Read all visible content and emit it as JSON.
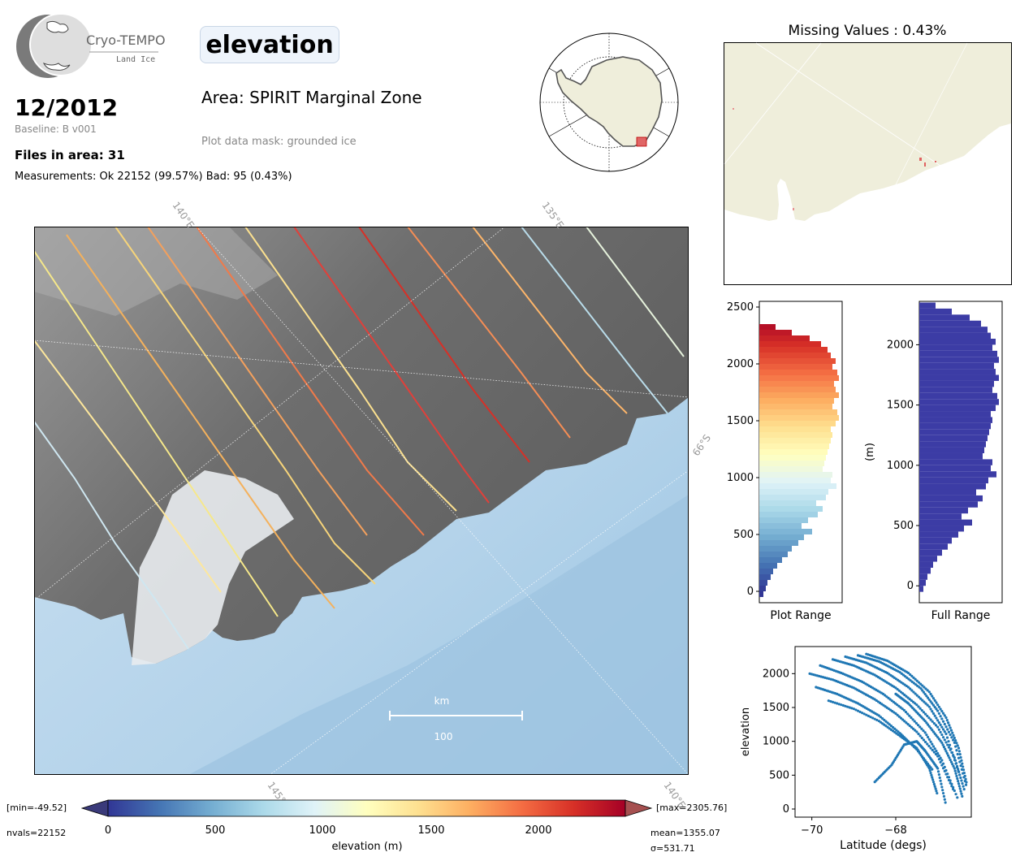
{
  "header": {
    "logo_name": "Cryo-TEMPO",
    "logo_sub": "Land Ice",
    "date": "12/2012",
    "baseline": "Baseline: B v001",
    "files": "Files in area: 31",
    "measurements": "Measurements: Ok 22152 (99.57%) Bad: 95 (0.43%)",
    "parameter": "elevation",
    "area": "Area: SPIRIT Marginal Zone",
    "mask": "Plot data mask: grounded ice"
  },
  "missing": {
    "title": "Missing Values : 0.43%"
  },
  "map": {
    "graticule_labels": [
      "140°E",
      "135°E",
      "66°S",
      "145°E",
      "140°E"
    ],
    "scale_unit": "km",
    "scale_value": "100"
  },
  "colorbar": {
    "min_label": "[min=-49.52]",
    "max_label": "[max=2305.76]",
    "nvals": "nvals=22152",
    "mean": "mean=1355.07",
    "sigma": "σ=531.71",
    "label": "elevation (m)",
    "ticks": [
      "0",
      "500",
      "1000",
      "1500",
      "2000"
    ],
    "colors": [
      "#313695",
      "#4575b4",
      "#74add1",
      "#abd9e9",
      "#e0f3f8",
      "#ffffbf",
      "#fee090",
      "#fdae61",
      "#f46d43",
      "#d73027",
      "#a50026"
    ]
  },
  "colors": {
    "histogram_full": "#3c3ca5",
    "scatter": "#1f77b4",
    "land": "#efeedb"
  },
  "chart_data": [
    {
      "type": "bar",
      "name": "plot_range_histogram",
      "xlabel": "Plot Range",
      "orientation": "horizontal",
      "ylim": [
        -100,
        2550
      ],
      "yticks": [
        "0",
        "500",
        "1000",
        "1500",
        "2000",
        "2500"
      ],
      "tick_values": [
        0,
        500,
        1000,
        1500,
        2000,
        2500
      ],
      "bins": [
        -50,
        0,
        50,
        100,
        150,
        200,
        250,
        300,
        350,
        400,
        450,
        500,
        550,
        600,
        650,
        700,
        750,
        800,
        850,
        900,
        950,
        1000,
        1050,
        1100,
        1150,
        1200,
        1250,
        1300,
        1350,
        1400,
        1450,
        1500,
        1550,
        1600,
        1650,
        1700,
        1750,
        1800,
        1850,
        1900,
        1950,
        2000,
        2050,
        2100,
        2150,
        2200,
        2250,
        2300
      ],
      "values": [
        5,
        8,
        10,
        14,
        17,
        22,
        28,
        35,
        40,
        48,
        55,
        65,
        52,
        60,
        72,
        78,
        70,
        82,
        85,
        95,
        88,
        90,
        78,
        80,
        82,
        84,
        86,
        88,
        90,
        88,
        94,
        98,
        96,
        90,
        92,
        98,
        94,
        92,
        98,
        96,
        90,
        94,
        88,
        84,
        76,
        62,
        40,
        20
      ]
    },
    {
      "type": "bar",
      "name": "full_range_histogram",
      "xlabel": "Full Range",
      "ylabel": "(m)",
      "orientation": "horizontal",
      "ylim": [
        -140,
        2360
      ],
      "yticks": [
        "0",
        "500",
        "1000",
        "1500",
        "2000"
      ],
      "tick_values": [
        0,
        500,
        1000,
        1500,
        2000
      ],
      "bins": [
        -50,
        0,
        50,
        100,
        150,
        200,
        250,
        300,
        350,
        400,
        450,
        500,
        550,
        600,
        650,
        700,
        750,
        800,
        850,
        900,
        950,
        1000,
        1050,
        1100,
        1150,
        1200,
        1250,
        1300,
        1350,
        1400,
        1450,
        1500,
        1550,
        1600,
        1650,
        1700,
        1750,
        1800,
        1850,
        1900,
        1950,
        2000,
        2050,
        2100,
        2150,
        2200,
        2250,
        2300
      ],
      "values": [
        5,
        8,
        10,
        14,
        17,
        22,
        28,
        35,
        40,
        48,
        55,
        65,
        52,
        60,
        72,
        78,
        70,
        82,
        85,
        95,
        88,
        90,
        78,
        80,
        82,
        84,
        86,
        88,
        90,
        88,
        94,
        98,
        96,
        90,
        92,
        98,
        94,
        92,
        98,
        96,
        90,
        94,
        88,
        84,
        76,
        62,
        40,
        20
      ]
    },
    {
      "type": "scatter",
      "name": "elevation_vs_latitude",
      "xlabel": "Latitude (degs)",
      "ylabel": "elevation",
      "xlim": [
        -70.4,
        -66.2
      ],
      "ylim": [
        -120,
        2400
      ],
      "xticks": [
        "−70",
        "−68"
      ],
      "xtick_values": [
        -70,
        -68
      ],
      "yticks": [
        "0",
        "500",
        "1000",
        "1500",
        "2000"
      ],
      "ytick_values": [
        0,
        500,
        1000,
        1500,
        2000
      ],
      "tracks": [
        {
          "x": [
            -70.05,
            -69.5,
            -69.0,
            -68.5,
            -68.0,
            -67.5,
            -67.0,
            -66.6
          ],
          "y": [
            2000,
            1910,
            1790,
            1620,
            1410,
            1140,
            780,
            250
          ]
        },
        {
          "x": [
            -69.8,
            -69.3,
            -68.8,
            -68.3,
            -67.8,
            -67.3,
            -66.9,
            -66.5
          ],
          "y": [
            2120,
            2010,
            1880,
            1700,
            1460,
            1130,
            720,
            120
          ]
        },
        {
          "x": [
            -69.5,
            -69.0,
            -68.5,
            -68.0,
            -67.5,
            -67.0,
            -66.6,
            -66.35
          ],
          "y": [
            2210,
            2120,
            1980,
            1790,
            1540,
            1210,
            760,
            250
          ]
        },
        {
          "x": [
            -69.2,
            -68.7,
            -68.2,
            -67.7,
            -67.2,
            -66.8,
            -66.45
          ],
          "y": [
            2250,
            2160,
            2010,
            1800,
            1510,
            1110,
            450
          ]
        },
        {
          "x": [
            -68.9,
            -68.4,
            -67.9,
            -67.4,
            -67.0,
            -66.6,
            -66.3
          ],
          "y": [
            2270,
            2180,
            2020,
            1780,
            1450,
            980,
            300
          ]
        },
        {
          "x": [
            -68.7,
            -68.2,
            -67.7,
            -67.2,
            -66.8,
            -66.5,
            -66.3
          ],
          "y": [
            2290,
            2190,
            2010,
            1730,
            1350,
            900,
            350
          ]
        },
        {
          "x": [
            -69.9,
            -69.4,
            -68.9,
            -68.4,
            -67.9,
            -67.5,
            -67.1
          ],
          "y": [
            1800,
            1700,
            1560,
            1380,
            1120,
            880,
            560
          ]
        },
        {
          "x": [
            -69.6,
            -69.0,
            -68.4,
            -67.9,
            -67.5,
            -67.2,
            -67.0
          ],
          "y": [
            1600,
            1480,
            1300,
            1080,
            900,
            600,
            200
          ]
        },
        {
          "x": [
            -68.5,
            -68.1,
            -67.8,
            -67.5,
            -67.3,
            -67.0,
            -66.8
          ],
          "y": [
            400,
            650,
            950,
            1000,
            860,
            600,
            50
          ]
        },
        {
          "x": [
            -68.0,
            -67.7,
            -67.3,
            -66.9,
            -66.6,
            -66.4
          ],
          "y": [
            1700,
            1560,
            1300,
            980,
            600,
            150
          ]
        }
      ]
    }
  ]
}
